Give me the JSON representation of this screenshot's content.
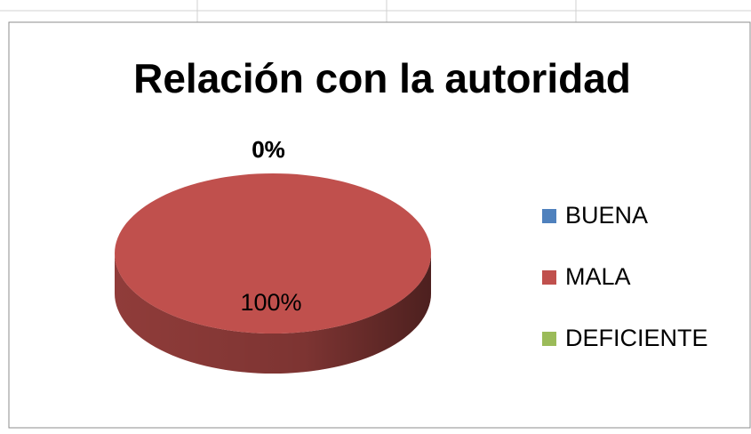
{
  "chart_data": {
    "type": "pie",
    "title": "Relación con la autoridad",
    "categories": [
      "BUENA",
      "MALA",
      "DEFICIENTE"
    ],
    "values": [
      0,
      100,
      0
    ],
    "value_labels": [
      "0%",
      "100%",
      "0%"
    ],
    "colors": [
      "#4f81bd",
      "#c0504d",
      "#9bbb59"
    ],
    "legend": "right"
  }
}
